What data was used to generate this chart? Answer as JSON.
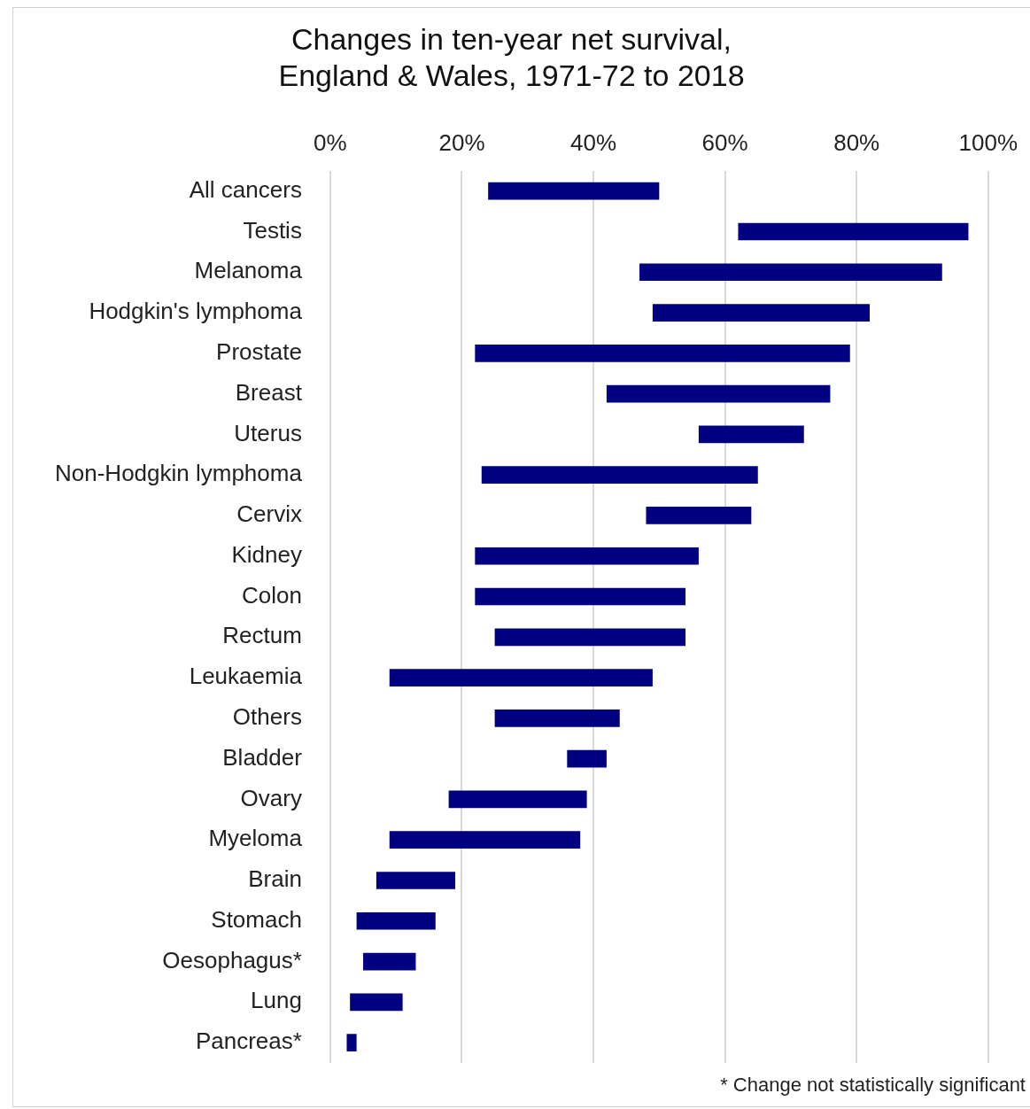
{
  "chart_data": {
    "type": "bar",
    "orientation": "horizontal",
    "title": "Changes in ten-year net survival,\nEngland & Wales, 1971-72 to 2018",
    "categories": [
      "All cancers",
      "Testis",
      "Melanoma",
      "Hodgkin's lymphoma",
      "Prostate",
      "Breast",
      "Uterus",
      "Non-Hodgkin lymphoma",
      "Cervix",
      "Kidney",
      "Colon",
      "Rectum",
      "Leukaemia",
      "Others",
      "Bladder",
      "Ovary",
      "Myeloma",
      "Brain",
      "Stomach",
      "Oesophagus*",
      "Lung",
      "Pancreas*"
    ],
    "base": [
      24,
      62,
      47,
      49,
      22,
      42,
      56,
      23,
      48,
      22,
      22,
      25,
      9,
      25,
      36,
      18,
      9,
      7,
      4,
      5,
      3,
      2.5
    ],
    "values": [
      26,
      35,
      46,
      33,
      57,
      34,
      16,
      42,
      16,
      34,
      32,
      29,
      40,
      19,
      6,
      21,
      29,
      12,
      12,
      8,
      8,
      1.5
    ],
    "color": "#000080",
    "xlim": [
      0,
      100
    ],
    "xticks": [
      {
        "value": 0,
        "label": "0%"
      },
      {
        "value": 20,
        "label": "20%"
      },
      {
        "value": 40,
        "label": "40%"
      },
      {
        "value": 60,
        "label": "60%"
      },
      {
        "value": 80,
        "label": "80%"
      },
      {
        "value": 100,
        "label": "100%"
      }
    ],
    "grid": "x",
    "legend": false,
    "annotations": [
      "* Change not statistically significant"
    ]
  }
}
